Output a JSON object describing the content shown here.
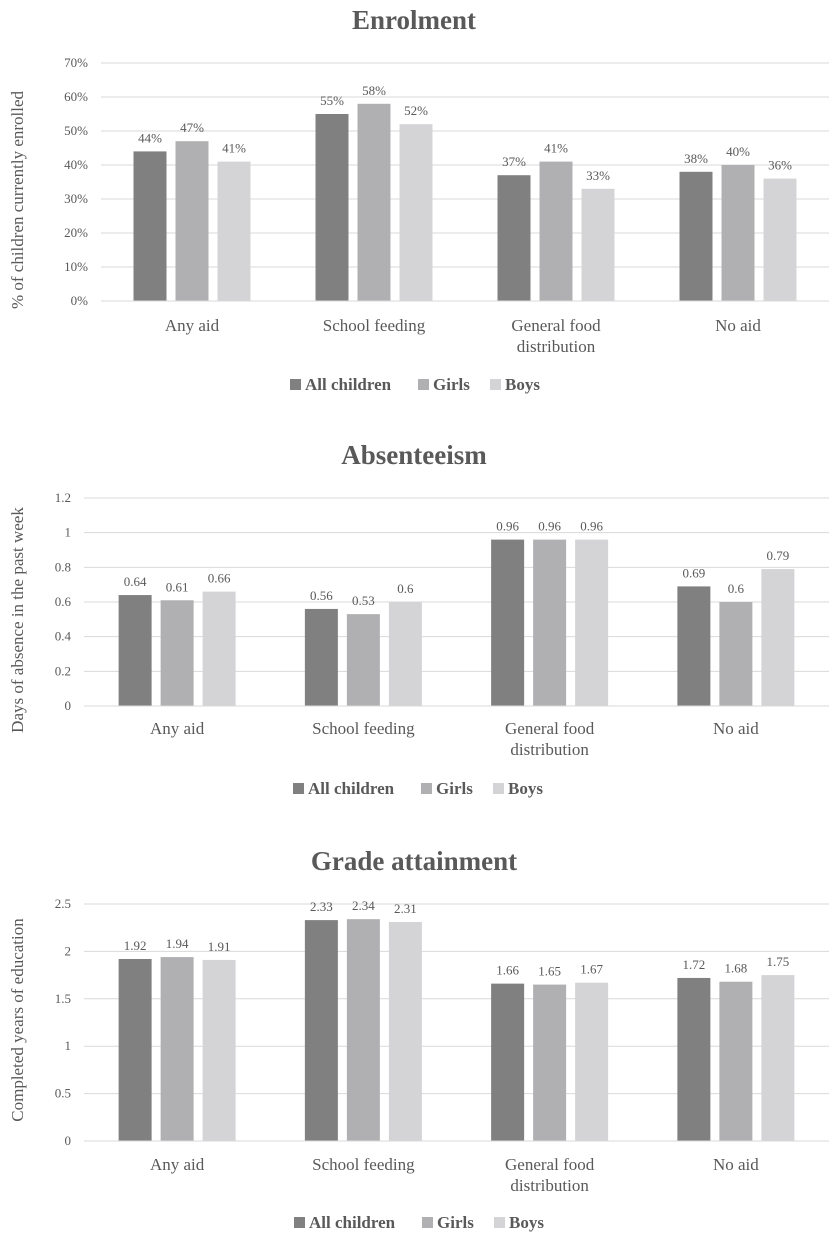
{
  "colors": {
    "all_children": "#808080",
    "girls": "#b0b0b2",
    "boys": "#d4d4d6",
    "grid": "#d9d9d9",
    "text": "#595959"
  },
  "chart_data": [
    {
      "type": "bar",
      "title": "Enrolment",
      "ylabel": "% of children currently enrolled",
      "xlabel": "",
      "categories": [
        "Any aid",
        "School feeding",
        "General food distribution",
        "No aid"
      ],
      "yticks": [
        "0%",
        "10%",
        "20%",
        "30%",
        "40%",
        "50%",
        "60%",
        "70%"
      ],
      "ylim": [
        0,
        70
      ],
      "series": [
        {
          "name": "All children",
          "values": [
            44,
            55,
            37,
            38
          ],
          "labels": [
            "44%",
            "55%",
            "37%",
            "38%"
          ]
        },
        {
          "name": "Girls",
          "values": [
            47,
            58,
            41,
            40
          ],
          "labels": [
            "47%",
            "58%",
            "41%",
            "40%"
          ]
        },
        {
          "name": "Boys",
          "values": [
            41,
            52,
            33,
            36
          ],
          "labels": [
            "41%",
            "52%",
            "33%",
            "36%"
          ]
        }
      ],
      "grid": true,
      "legend": "bottom"
    },
    {
      "type": "bar",
      "title": "Absenteeism",
      "ylabel": "Days of absence in the past week",
      "xlabel": "",
      "categories": [
        "Any aid",
        "School feeding",
        "General food distribution",
        "No aid"
      ],
      "yticks": [
        "0",
        "0.2",
        "0.4",
        "0.6",
        "0.8",
        "1",
        "1.2"
      ],
      "ylim": [
        0,
        1.2
      ],
      "series": [
        {
          "name": "All children",
          "values": [
            0.64,
            0.56,
            0.96,
            0.69
          ],
          "labels": [
            "0.64",
            "0.56",
            "0.96",
            "0.69"
          ]
        },
        {
          "name": "Girls",
          "values": [
            0.61,
            0.53,
            0.96,
            0.6
          ],
          "labels": [
            "0.61",
            "0.53",
            "0.96",
            "0.6"
          ]
        },
        {
          "name": "Boys",
          "values": [
            0.66,
            0.6,
            0.96,
            0.79
          ],
          "labels": [
            "0.66",
            "0.6",
            "0.96",
            "0.79"
          ]
        }
      ],
      "grid": true,
      "legend": "bottom"
    },
    {
      "type": "bar",
      "title": "Grade attainment",
      "ylabel": "Completed years of education",
      "xlabel": "",
      "categories": [
        "Any aid",
        "School feeding",
        "General food distribution",
        "No aid"
      ],
      "yticks": [
        "0",
        "0.5",
        "1",
        "1.5",
        "2",
        "2.5"
      ],
      "ylim": [
        0,
        2.5
      ],
      "series": [
        {
          "name": "All children",
          "values": [
            1.92,
            2.33,
            1.66,
            1.72
          ],
          "labels": [
            "1.92",
            "2.33",
            "1.66",
            "1.72"
          ]
        },
        {
          "name": "Girls",
          "values": [
            1.94,
            2.34,
            1.65,
            1.68
          ],
          "labels": [
            "1.94",
            "2.34",
            "1.65",
            "1.68"
          ]
        },
        {
          "name": "Boys",
          "values": [
            1.91,
            2.31,
            1.67,
            1.75
          ],
          "labels": [
            "1.91",
            "2.31",
            "1.67",
            "1.75"
          ]
        }
      ],
      "grid": true,
      "legend": "bottom"
    }
  ]
}
